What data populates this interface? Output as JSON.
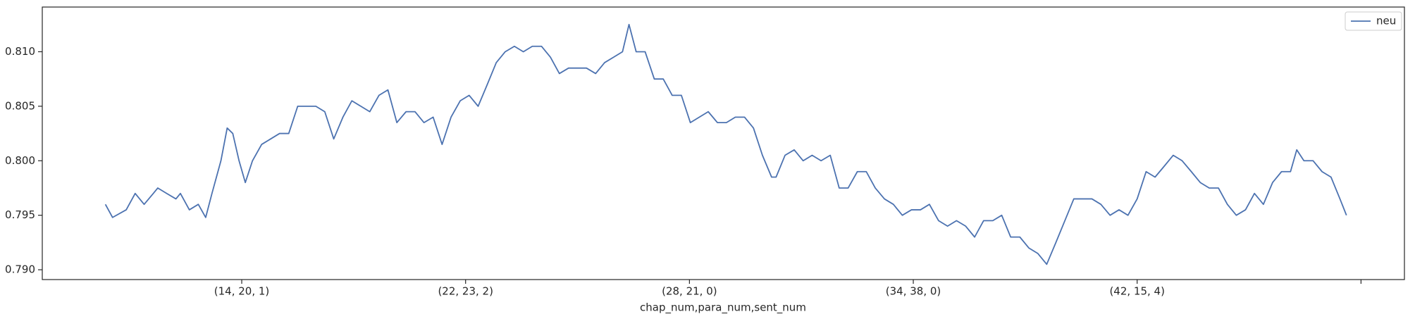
{
  "chart_data": {
    "type": "line",
    "xlabel": "chap_num,para_num,sent_num",
    "xlim": [
      109,
      6194
    ],
    "xticks": [
      {
        "value": 1000,
        "label": "(14, 20, 1)"
      },
      {
        "value": 2000,
        "label": "(22, 23, 2)"
      },
      {
        "value": 3000,
        "label": "(28, 21, 0)"
      },
      {
        "value": 4000,
        "label": "(34, 38, 0)"
      },
      {
        "value": 5000,
        "label": "(42, 15, 4)"
      },
      {
        "value": 6000,
        "label": null
      }
    ],
    "ylim": [
      0.7891,
      0.8141
    ],
    "yticks": [
      {
        "value": 0.79,
        "label": "0.790"
      },
      0.795,
      {
        "value": 0.8,
        "label": "0.800"
      },
      0.805,
      {
        "value": 0.81,
        "label": "0.810"
      }
    ],
    "legend": "upper right",
    "grid": false,
    "x": [
      391,
      423,
      484,
      524,
      564,
      605,
      625,
      665,
      706,
      726,
      766,
      806,
      839,
      867,
      907,
      935,
      960,
      988,
      1016,
      1048,
      1089,
      1129,
      1169,
      1210,
      1250,
      1290,
      1331,
      1371,
      1411,
      1452,
      1492,
      1532,
      1572,
      1613,
      1653,
      1693,
      1734,
      1774,
      1814,
      1855,
      1895,
      1935,
      1976,
      2016,
      2056,
      2097,
      2137,
      2177,
      2218,
      2258,
      2298,
      2339,
      2379,
      2419,
      2460,
      2500,
      2540,
      2581,
      2621,
      2661,
      2701,
      2730,
      2762,
      2802,
      2843,
      2883,
      2923,
      2964,
      3004,
      3044,
      3084,
      3125,
      3165,
      3205,
      3246,
      3286,
      3326,
      3367,
      3387,
      3427,
      3468,
      3508,
      3548,
      3588,
      3629,
      3669,
      3709,
      3750,
      3790,
      3830,
      3871,
      3911,
      3951,
      3992,
      4032,
      4072,
      4113,
      4153,
      4193,
      4234,
      4274,
      4314,
      4355,
      4395,
      4435,
      4476,
      4516,
      4556,
      4596,
      4637,
      4677,
      4717,
      4758,
      4798,
      4838,
      4879,
      4919,
      4959,
      5000,
      5040,
      5080,
      5121,
      5161,
      5201,
      5242,
      5282,
      5322,
      5363,
      5403,
      5443,
      5484,
      5524,
      5564,
      5605,
      5645,
      5685,
      5713,
      5745,
      5786,
      5826,
      5866,
      5906,
      5935
    ],
    "series": [
      {
        "name": "neu",
        "color": "#4c72b0",
        "values": [
          0.796,
          0.7948,
          0.7955,
          0.797,
          0.796,
          0.797,
          0.7975,
          0.797,
          0.7965,
          0.797,
          0.7955,
          0.796,
          0.7948,
          0.797,
          0.8,
          0.803,
          0.8025,
          0.8,
          0.798,
          0.8,
          0.8015,
          0.802,
          0.8025,
          0.8025,
          0.805,
          0.805,
          0.805,
          0.8045,
          0.802,
          0.804,
          0.8055,
          0.805,
          0.8045,
          0.806,
          0.8065,
          0.8035,
          0.8045,
          0.8045,
          0.8035,
          0.804,
          0.8015,
          0.804,
          0.8055,
          0.806,
          0.805,
          0.807,
          0.809,
          0.81,
          0.8105,
          0.81,
          0.8105,
          0.8105,
          0.8095,
          0.808,
          0.8085,
          0.8085,
          0.8085,
          0.808,
          0.809,
          0.8095,
          0.81,
          0.8125,
          0.81,
          0.81,
          0.8075,
          0.8075,
          0.806,
          0.806,
          0.8035,
          0.804,
          0.8045,
          0.8035,
          0.8035,
          0.804,
          0.804,
          0.803,
          0.8005,
          0.7985,
          0.7985,
          0.8005,
          0.801,
          0.8,
          0.8005,
          0.8,
          0.8005,
          0.7975,
          0.7975,
          0.799,
          0.799,
          0.7975,
          0.7965,
          0.796,
          0.795,
          0.7955,
          0.7955,
          0.796,
          0.7945,
          0.794,
          0.7945,
          0.794,
          0.793,
          0.7945,
          0.7945,
          0.795,
          0.793,
          0.793,
          0.792,
          0.7915,
          0.7905,
          0.7925,
          0.7945,
          0.7965,
          0.7965,
          0.7965,
          0.796,
          0.795,
          0.7955,
          0.795,
          0.7965,
          0.799,
          0.7985,
          0.7995,
          0.8005,
          0.8,
          0.799,
          0.798,
          0.7975,
          0.7975,
          0.796,
          0.795,
          0.7955,
          0.797,
          0.796,
          0.798,
          0.799,
          0.799,
          0.801,
          0.8,
          0.8,
          0.799,
          0.7985,
          0.7965,
          0.795
        ]
      }
    ]
  }
}
